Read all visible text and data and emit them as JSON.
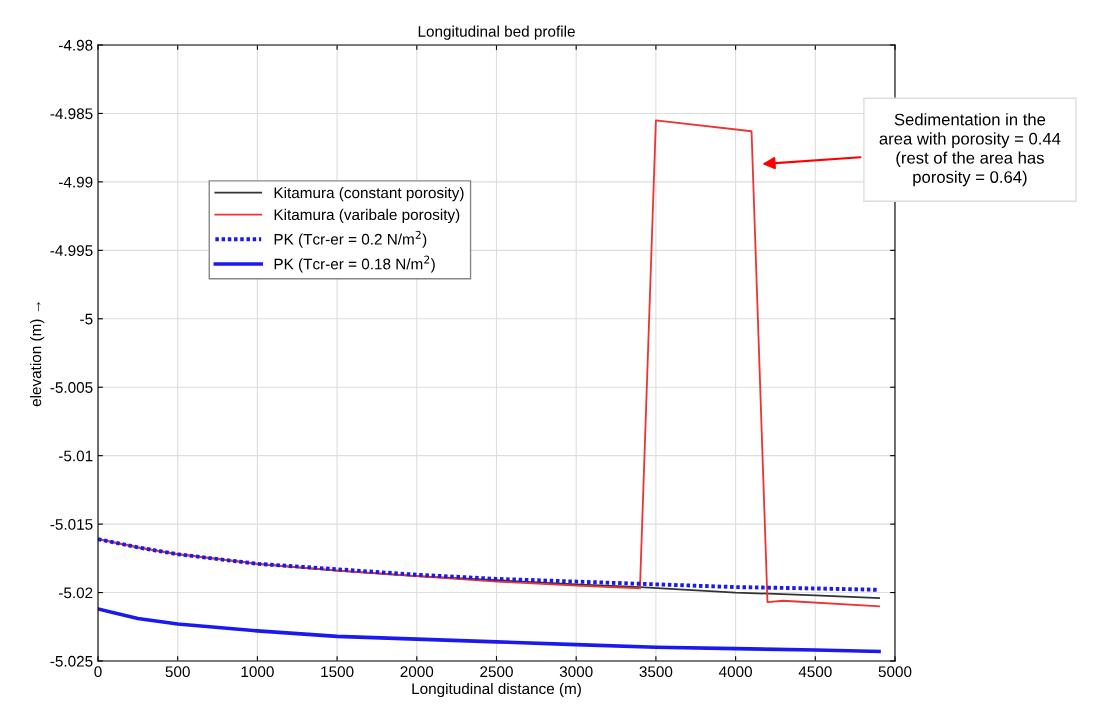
{
  "chart_data": {
    "type": "line",
    "title": "Longitudinal bed profile",
    "xlabel": "Longitudinal distance (m)",
    "ylabel": "elevation (m) →",
    "xlim": [
      0,
      5000
    ],
    "ylim": [
      -5.025,
      -4.98
    ],
    "xticks": [
      0,
      500,
      1000,
      1500,
      2000,
      2500,
      3000,
      3500,
      4000,
      4500,
      5000
    ],
    "yticks": [
      -5.025,
      -5.02,
      -5.015,
      -5.01,
      -5.005,
      -5,
      -4.995,
      -4.99,
      -4.985,
      -4.98
    ],
    "grid": true,
    "legend": "left",
    "marker": "none",
    "series": [
      {
        "name": "Kitamura (constant porosity)",
        "color": "#333333",
        "line_style": "solid",
        "x": [
          0,
          250,
          500,
          1000,
          1500,
          2000,
          2500,
          3000,
          3400,
          4000,
          4500,
          4900
        ],
        "values": [
          -5.0161,
          -5.0167,
          -5.0172,
          -5.0179,
          -5.0184,
          -5.0188,
          -5.0191,
          -5.0194,
          -5.0196,
          -5.02,
          -5.0202,
          -5.0204
        ]
      },
      {
        "name": "Kitamura (varibale porosity)",
        "color": "#ee3333",
        "line_style": "solid",
        "x": [
          0,
          250,
          500,
          1000,
          1500,
          2000,
          2500,
          3000,
          3400,
          3500,
          4100,
          4200,
          4300,
          4900
        ],
        "values": [
          -5.0161,
          -5.0167,
          -5.0172,
          -5.0179,
          -5.0184,
          -5.0188,
          -5.0192,
          -5.0195,
          -5.0197,
          -4.9855,
          -4.9863,
          -5.0207,
          -5.0206,
          -5.021
        ]
      },
      {
        "name": "PK (Tcr-er = 0.2 N/m$^{2}$)",
        "color": "#1a1aee",
        "line_style": "dotted",
        "x": [
          0,
          250,
          500,
          1000,
          1500,
          2000,
          2500,
          3000,
          3500,
          4000,
          4500,
          4900
        ],
        "values": [
          -5.0161,
          -5.0167,
          -5.0172,
          -5.0179,
          -5.0183,
          -5.0187,
          -5.019,
          -5.0192,
          -5.0194,
          -5.0196,
          -5.0197,
          -5.0198
        ]
      },
      {
        "name": "PK (Tcr-er = 0.18 N/m$^{2}$)",
        "color": "#1a1aee",
        "line_style": "solid",
        "x": [
          0,
          250,
          500,
          1000,
          1500,
          2000,
          2500,
          3000,
          3500,
          4000,
          4500,
          4900
        ],
        "values": [
          -5.0212,
          -5.0219,
          -5.0223,
          -5.0228,
          -5.0232,
          -5.0234,
          -5.0236,
          -5.0238,
          -5.024,
          -5.0241,
          -5.0242,
          -5.0243
        ]
      }
    ],
    "annotations": [
      "Sedimentation in the\narea with porosity = 0.44\n(rest of the area has\nporosity = 0.64)"
    ]
  }
}
